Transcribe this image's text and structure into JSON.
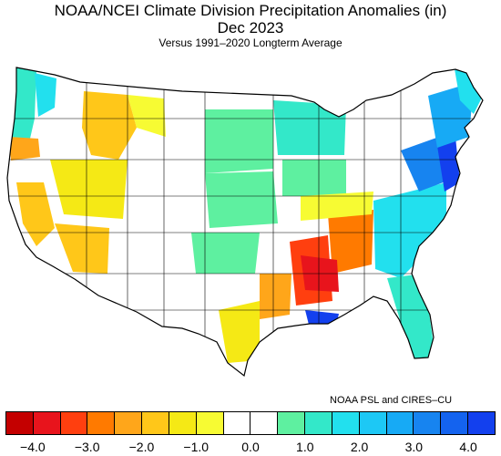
{
  "header": {
    "title": "NOAA/NCEI Climate Division Precipitation Anomalies (in)",
    "subtitle": "Dec 2023",
    "caption": "Versus 1991–2020 Longterm Average"
  },
  "credit": "NOAA PSL and CIRES–CU",
  "legend": {
    "colors": [
      "#c40000",
      "#e8141c",
      "#ff3f0f",
      "#ff7a00",
      "#ffa61a",
      "#ffc719",
      "#f5e915",
      "#f7fb33",
      "#ffffff",
      "#ffffff",
      "#5ef0a0",
      "#33e8c9",
      "#22e0ee",
      "#1dc8f5",
      "#17aaf5",
      "#1784f0",
      "#1463ef",
      "#1340ee"
    ],
    "tick_labels": [
      "−4.0",
      "−3.0",
      "−2.0",
      "−1.0",
      "0.0",
      "1.0",
      "2.0",
      "3.0",
      "4.0"
    ]
  },
  "regions": [
    {
      "name": "pacific-northwest-coast",
      "anomaly": 2.0,
      "color": "#33e8c9"
    },
    {
      "name": "western-washington-interior",
      "anomaly": 2.5,
      "color": "#22e0ee"
    },
    {
      "name": "northern-rockies-idaho-montana",
      "anomaly": -1.5,
      "color": "#ffc719"
    },
    {
      "name": "western-montana",
      "anomaly": -1.0,
      "color": "#f7fb33"
    },
    {
      "name": "southwest-oregon",
      "anomaly": -2.0,
      "color": "#ffa61a"
    },
    {
      "name": "california-valley",
      "anomaly": -1.5,
      "color": "#ffc719"
    },
    {
      "name": "nevada-utah-great-basin",
      "anomaly": -1.0,
      "color": "#f5e915"
    },
    {
      "name": "southern-california-arizona",
      "anomaly": -1.5,
      "color": "#ffc719"
    },
    {
      "name": "northern-plains-minnesota",
      "anomaly": 1.0,
      "color": "#5ef0a0"
    },
    {
      "name": "central-plains-kansas-nebraska",
      "anomaly": 1.0,
      "color": "#5ef0a0"
    },
    {
      "name": "upper-midwest-wisconsin-michigan",
      "anomaly": 1.5,
      "color": "#33e8c9"
    },
    {
      "name": "ohio-valley",
      "anomaly": 1.0,
      "color": "#5ef0a0"
    },
    {
      "name": "texas-plains",
      "anomaly": 1.0,
      "color": "#5ef0a0"
    },
    {
      "name": "south-texas",
      "anomaly": -1.0,
      "color": "#f5e915"
    },
    {
      "name": "east-texas",
      "anomaly": -2.0,
      "color": "#ffa61a"
    },
    {
      "name": "lower-mississippi-valley",
      "anomaly": -3.5,
      "color": "#ff3f0f"
    },
    {
      "name": "tennessee-valley-alabama",
      "anomaly": -3.0,
      "color": "#ff7a00"
    },
    {
      "name": "central-mississippi-core",
      "anomaly": -4.0,
      "color": "#e8141c"
    },
    {
      "name": "kentucky-southern-ohio",
      "anomaly": -1.0,
      "color": "#f7fb33"
    },
    {
      "name": "south-louisiana-coast",
      "anomaly": 4.0,
      "color": "#1340ee"
    },
    {
      "name": "southeast-georgia-carolinas",
      "anomaly": 2.0,
      "color": "#22e0ee"
    },
    {
      "name": "florida-peninsula",
      "anomaly": 2.0,
      "color": "#33e8c9"
    },
    {
      "name": "mid-atlantic",
      "anomaly": 3.0,
      "color": "#1784f0"
    },
    {
      "name": "new-jersey-coast",
      "anomaly": 4.0,
      "color": "#1340ee"
    },
    {
      "name": "new-england",
      "anomaly": 3.0,
      "color": "#17aaf5"
    },
    {
      "name": "northern-maine",
      "anomaly": 2.0,
      "color": "#22e0ee"
    }
  ]
}
